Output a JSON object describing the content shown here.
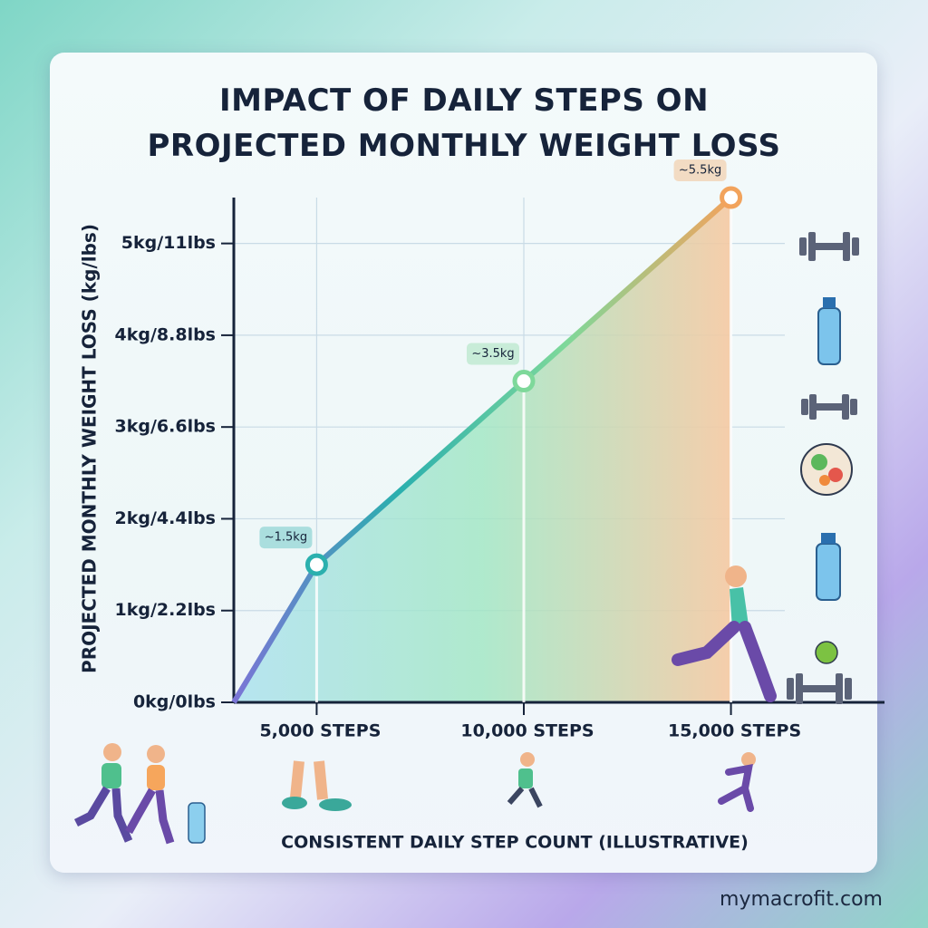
{
  "chart_data": {
    "type": "line",
    "title": "IMPACT OF DAILY STEPS ON PROJECTED MONTHLY WEIGHT LOSS",
    "x_label": "CONSISTENT DAILY STEP COUNT (ILLUSTRATIVE)",
    "y_label": "PROJECTED MONTHLY WEIGHT LOSS (kg/lbs)",
    "x": [
      3000,
      5000,
      10000,
      15000
    ],
    "values": [
      0,
      1.5,
      3.5,
      5.5
    ],
    "value_labels": [
      null,
      "~1.5kg",
      "~3.5kg",
      "~5.5kg"
    ],
    "xlim": [
      3000,
      16300
    ],
    "xticks": [
      {
        "value": 5000,
        "label": "5,000 STEPS"
      },
      {
        "value": 10000,
        "label": "10,000 STEPS"
      },
      {
        "value": 15000,
        "label": "15,000 STEPS"
      }
    ],
    "ylim": [
      0,
      5.5
    ],
    "yticks": [
      {
        "value": 0,
        "label": "0kg/0lbs"
      },
      {
        "value": 1,
        "label": "1kg/2.2lbs"
      },
      {
        "value": 2,
        "label": "2kg/4.4lbs"
      },
      {
        "value": 3,
        "label": "3kg/6.6lbs"
      },
      {
        "value": 4,
        "label": "4kg/8.8lbs"
      },
      {
        "value": 5,
        "label": "5kg/11lbs"
      }
    ],
    "grid": true,
    "line_colors": [
      "#7b74d6",
      "#2bb0ae",
      "#7ed89a",
      "#f2a35c"
    ],
    "watermark": "mymacrofit.com"
  }
}
